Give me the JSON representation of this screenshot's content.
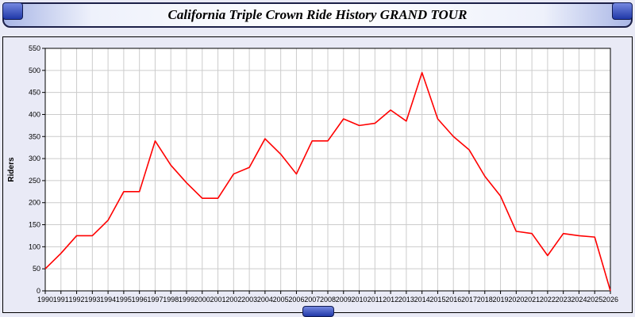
{
  "window": {
    "title": "California Triple Crown Ride History GRAND TOUR"
  },
  "chart_data": {
    "type": "line",
    "title": "California Triple Crown Ride History GRAND TOUR",
    "xlabel": "",
    "ylabel": "Riders",
    "ylim": [
      0,
      550
    ],
    "ytick_step": 50,
    "grid": true,
    "legend": "none",
    "line_color": "#ff0000",
    "x": [
      1990,
      1991,
      1992,
      1993,
      1994,
      1995,
      1996,
      1997,
      1998,
      1999,
      2000,
      2001,
      2002,
      2003,
      2004,
      2005,
      2006,
      2007,
      2008,
      2009,
      2010,
      2011,
      2012,
      2013,
      2014,
      2015,
      2016,
      2017,
      2018,
      2019,
      2020,
      2021,
      2022,
      2023,
      2024,
      2025,
      2026
    ],
    "values": [
      50,
      85,
      125,
      125,
      160,
      225,
      225,
      340,
      285,
      245,
      210,
      210,
      265,
      280,
      345,
      310,
      265,
      340,
      340,
      390,
      375,
      380,
      410,
      385,
      495,
      390,
      350,
      320,
      260,
      215,
      135,
      130,
      80,
      130,
      125,
      122,
      0
    ]
  },
  "colors": {
    "page_background": "#e9eaf6",
    "plot_background": "#ffffff",
    "grid_line": "#cccccc",
    "axis": "#000000",
    "series_line": "#ff0000",
    "accent_blue": "#2038a8"
  }
}
